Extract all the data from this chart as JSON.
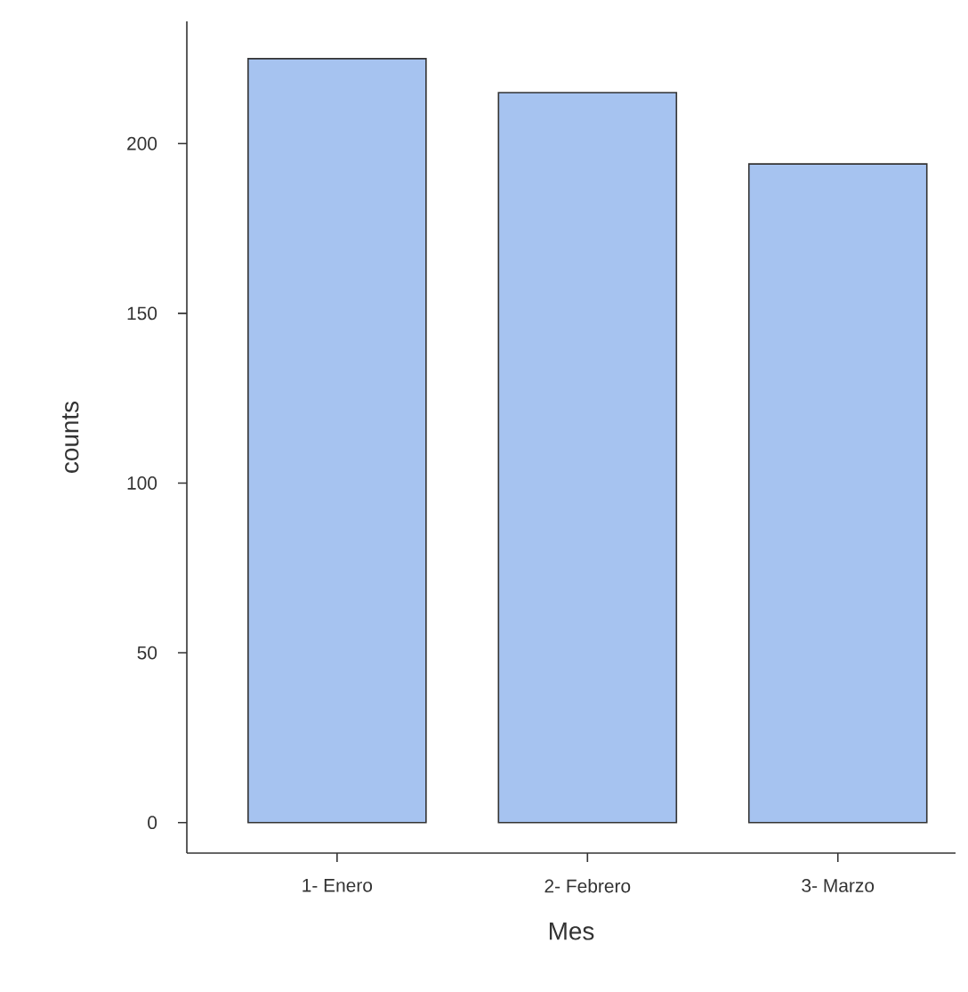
{
  "chart_data": {
    "type": "bar",
    "xlabel": "Mes",
    "ylabel": "counts",
    "categories": [
      "1- Enero",
      "2- Febrero",
      "3- Marzo"
    ],
    "values": [
      225,
      215,
      194
    ],
    "color": "#a6c3f0",
    "ylim": [
      -9,
      236
    ],
    "yticks": [
      0,
      50,
      100,
      150,
      200
    ],
    "grid": false
  }
}
